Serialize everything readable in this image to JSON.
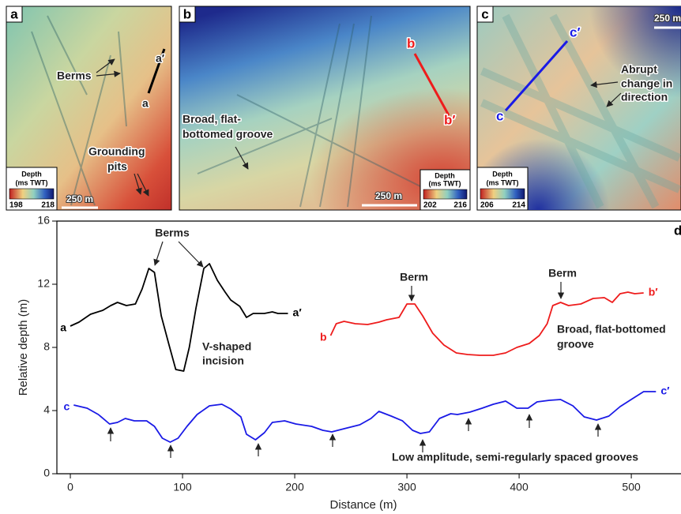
{
  "map_panels": [
    {
      "letter": "a",
      "labels": [
        "a′",
        "a",
        "Berms",
        "Grounding",
        "pits"
      ],
      "scale_bar": "250 m",
      "colorbar": {
        "title": [
          "Depth",
          "(ms TWT)"
        ],
        "min": 198,
        "max": 218
      }
    },
    {
      "letter": "b",
      "labels": [
        "b",
        "b′",
        "Broad, flat-",
        "bottomed groove"
      ],
      "scale_bar": "250 m",
      "colorbar": {
        "title": [
          "Depth",
          "(ms TWT)"
        ],
        "min": 202,
        "max": 216
      }
    },
    {
      "letter": "c",
      "labels": [
        "c′",
        "c",
        "Abrupt",
        "change in",
        "direction"
      ],
      "scale_bar": "250 m",
      "colorbar": {
        "title": [
          "Depth",
          "(ms TWT)"
        ],
        "min": 206,
        "max": 214
      }
    }
  ],
  "chart_data": {
    "type": "line",
    "panel_letter": "d",
    "xlabel": "Distance (m)",
    "ylabel": "Relative depth (m)",
    "xlim": [
      -12,
      545
    ],
    "ylim": [
      0,
      16
    ],
    "xticks": [
      0,
      100,
      200,
      300,
      400,
      500
    ],
    "yticks": [
      0,
      4,
      8,
      12,
      16
    ],
    "series": [
      {
        "start_label": "a",
        "end_label": "a′",
        "color": "#000000",
        "x": [
          0,
          7.7,
          18,
          29,
          36,
          42,
          50,
          58,
          64,
          70,
          75,
          81,
          88,
          94,
          101,
          106,
          112,
          119,
          124,
          131,
          138,
          143,
          151,
          157,
          163,
          173,
          180,
          185,
          194
        ],
        "values": [
          9.35,
          9.6,
          10.1,
          10.35,
          10.65,
          10.85,
          10.65,
          10.75,
          11.7,
          13.0,
          12.75,
          10.0,
          8.15,
          6.6,
          6.5,
          8.0,
          10.5,
          13.0,
          13.3,
          12.25,
          11.5,
          11.0,
          10.6,
          9.9,
          10.15,
          10.15,
          10.25,
          10.15,
          10.15
        ]
      },
      {
        "start_label": "b",
        "end_label": "b′",
        "color": "#ee1c1c",
        "x": [
          232,
          237,
          244,
          254,
          265,
          275,
          282,
          293,
          300,
          307,
          314,
          323,
          333,
          344,
          354,
          365,
          377,
          388,
          398,
          409,
          418,
          425,
          430,
          437,
          444,
          455,
          466,
          476,
          483,
          490,
          497,
          503,
          511
        ],
        "values": [
          8.75,
          9.5,
          9.65,
          9.5,
          9.45,
          9.6,
          9.75,
          9.9,
          10.75,
          10.75,
          10.0,
          8.9,
          8.15,
          7.65,
          7.55,
          7.5,
          7.5,
          7.65,
          8.0,
          8.25,
          8.75,
          9.5,
          10.65,
          10.85,
          10.65,
          10.75,
          11.1,
          11.15,
          10.85,
          11.4,
          11.5,
          11.4,
          11.45
        ]
      },
      {
        "start_label": "c",
        "end_label": "c′",
        "color": "#1a1ae6",
        "x": [
          3,
          15,
          25,
          35,
          42,
          49,
          57,
          68,
          75,
          82,
          89,
          96,
          104,
          113,
          124,
          135,
          143,
          152,
          157,
          165,
          173,
          180,
          191,
          201,
          215,
          225,
          233,
          244,
          258,
          268,
          275,
          286,
          296,
          305,
          312,
          320,
          329,
          339,
          345,
          356,
          367,
          377,
          388,
          398,
          408,
          416,
          427,
          437,
          448,
          458,
          469,
          480,
          490,
          501,
          511,
          522
        ],
        "values": [
          4.35,
          4.15,
          3.75,
          3.15,
          3.25,
          3.5,
          3.35,
          3.35,
          3.0,
          2.25,
          2.0,
          2.25,
          3.0,
          3.75,
          4.3,
          4.4,
          4.1,
          3.6,
          2.5,
          2.15,
          2.6,
          3.25,
          3.35,
          3.15,
          3.0,
          2.75,
          2.65,
          2.85,
          3.1,
          3.5,
          3.95,
          3.65,
          3.35,
          2.75,
          2.55,
          2.65,
          3.5,
          3.8,
          3.75,
          3.9,
          4.15,
          4.4,
          4.6,
          4.15,
          4.15,
          4.55,
          4.65,
          4.7,
          4.3,
          3.6,
          3.4,
          3.65,
          4.25,
          4.75,
          5.2,
          5.2
        ]
      }
    ],
    "annotations": [
      "Berms",
      "Berm",
      "Berm",
      "V-shaped",
      "incision",
      "Broad, flat-bottomed",
      "groove",
      "Low amplitude, semi-regularly spaced grooves"
    ]
  }
}
